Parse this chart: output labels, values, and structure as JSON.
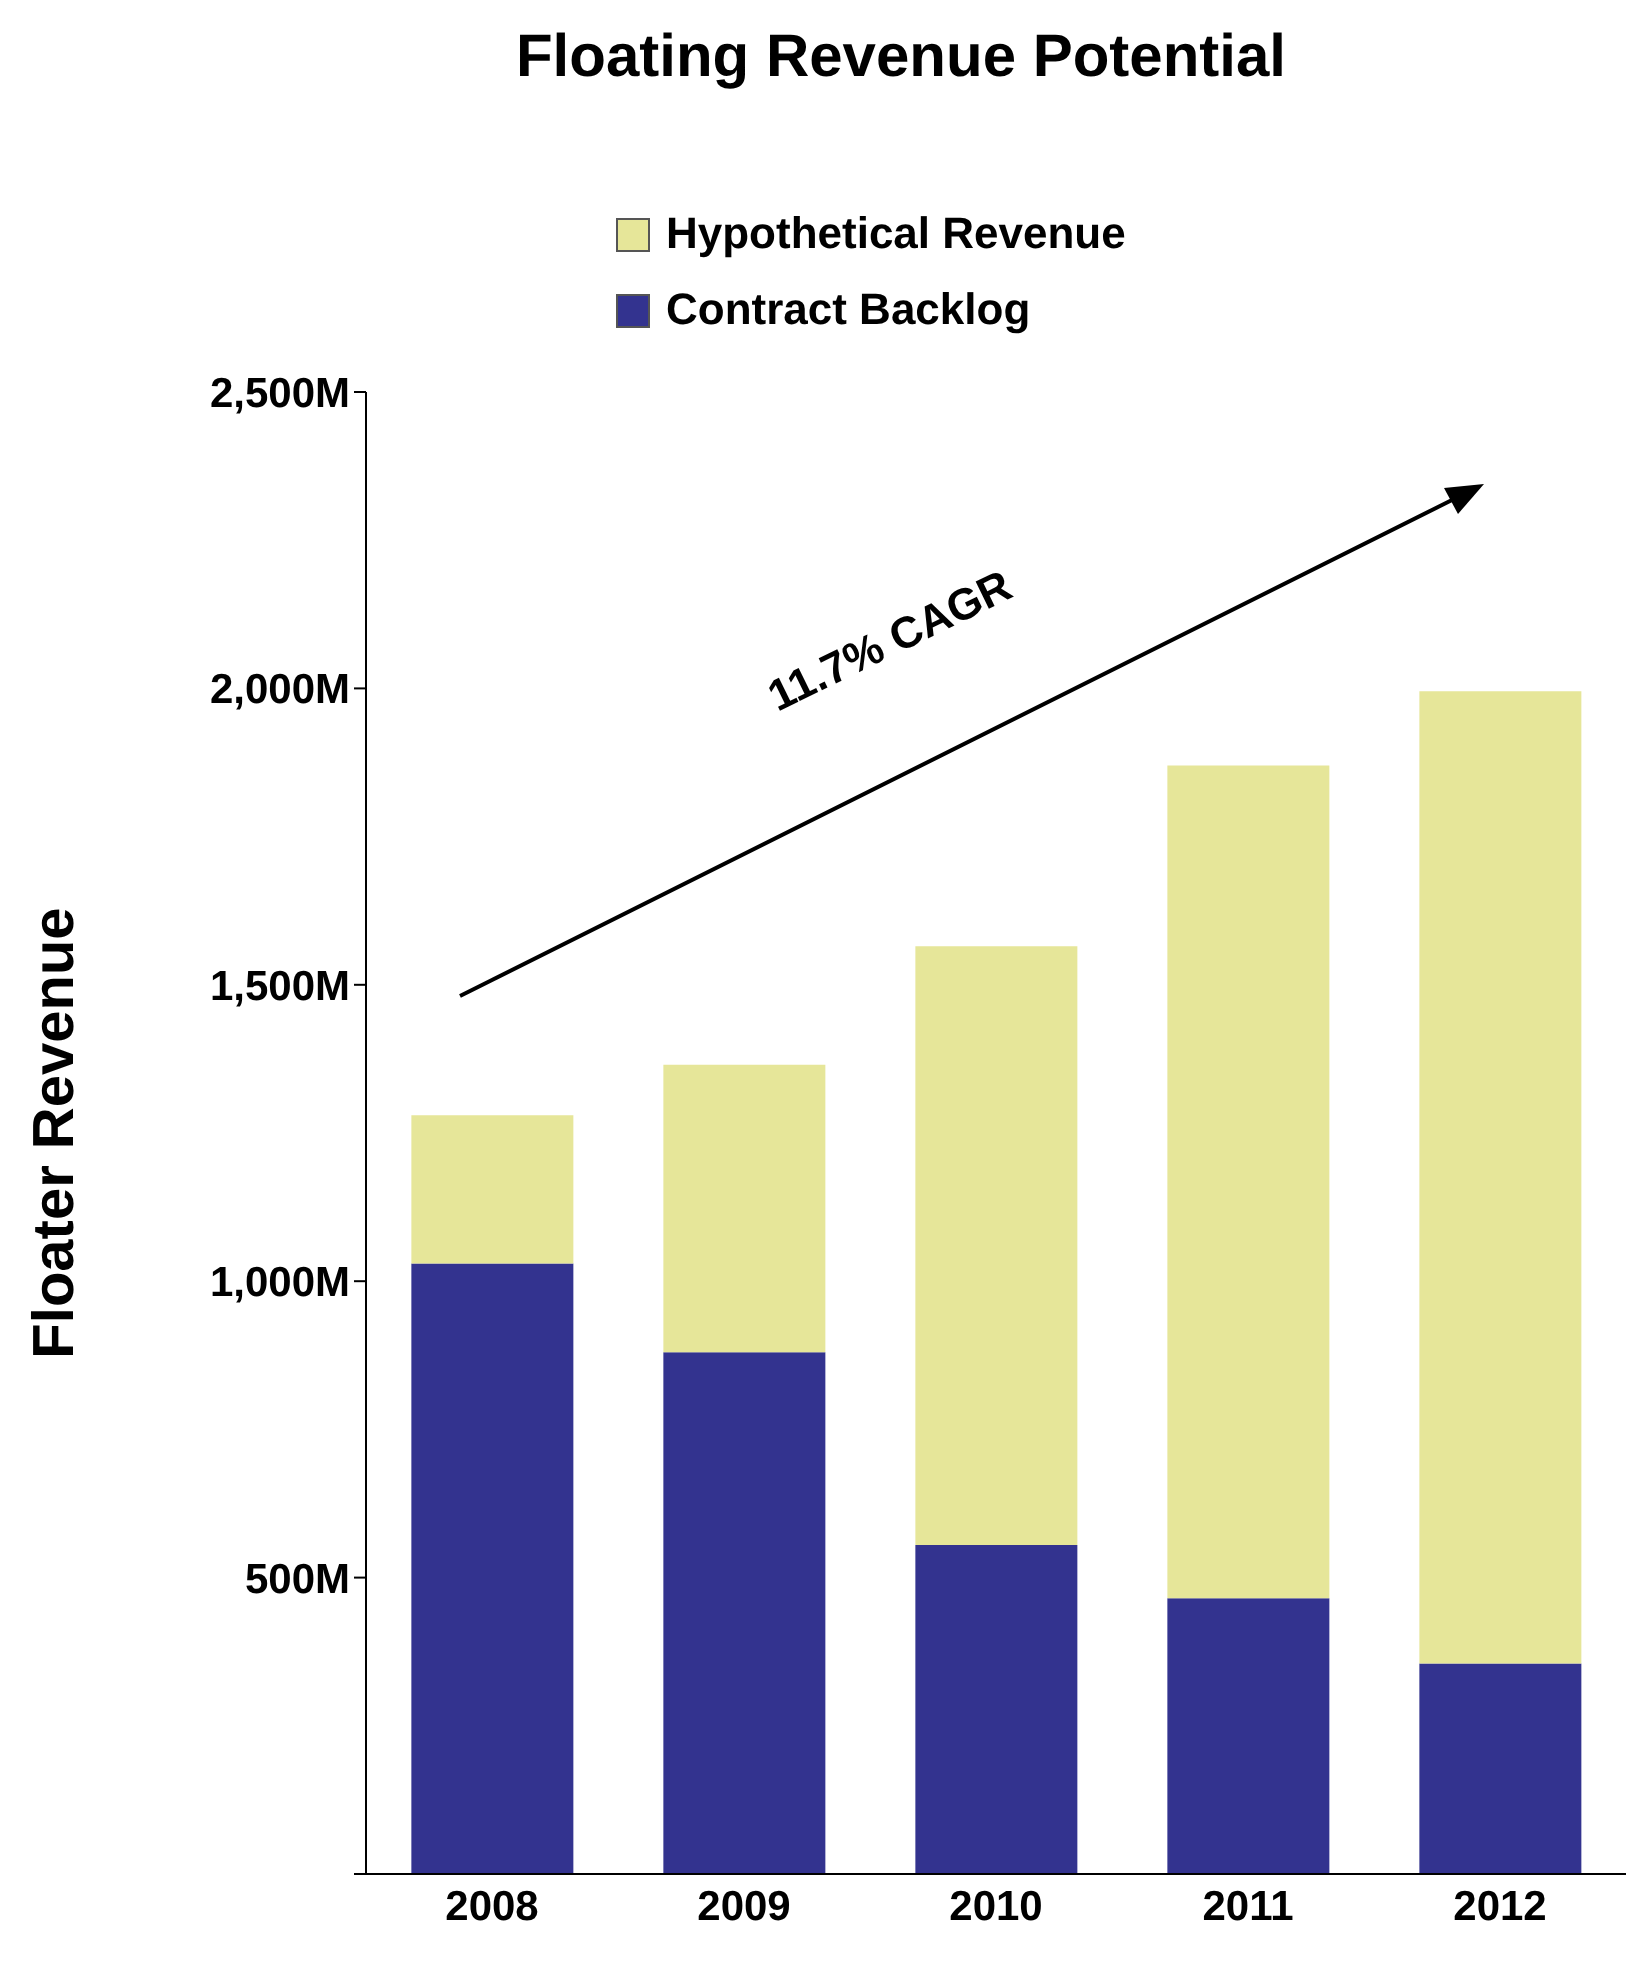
{
  "chart_data": {
    "type": "bar",
    "title": "Floating Revenue Potential",
    "ylabel": "Floater Revenue",
    "categories": [
      "2008",
      "2009",
      "2010",
      "2011",
      "2012"
    ],
    "stacked": true,
    "series": [
      {
        "name": "Contract Backlog",
        "color": "#33338f",
        "values": [
          1030,
          880,
          555,
          465,
          355
        ]
      },
      {
        "name": "Hypothetical Revenue",
        "color": "#e6e699",
        "values": [
          250,
          485,
          1010,
          1405,
          1640
        ]
      }
    ],
    "ylim": [
      0,
      2500
    ],
    "yticks": [
      {
        "value": 0,
        "label": null
      },
      {
        "value": 500,
        "label": "500M"
      },
      {
        "value": 1000,
        "label": "1,000M"
      },
      {
        "value": 1500,
        "label": "1,500M"
      },
      {
        "value": 2000,
        "label": "2,000M"
      },
      {
        "value": 2500,
        "label": "2,500M"
      }
    ],
    "grid": false,
    "legend": "top",
    "annotations": [
      "11.7% CAGR"
    ]
  }
}
